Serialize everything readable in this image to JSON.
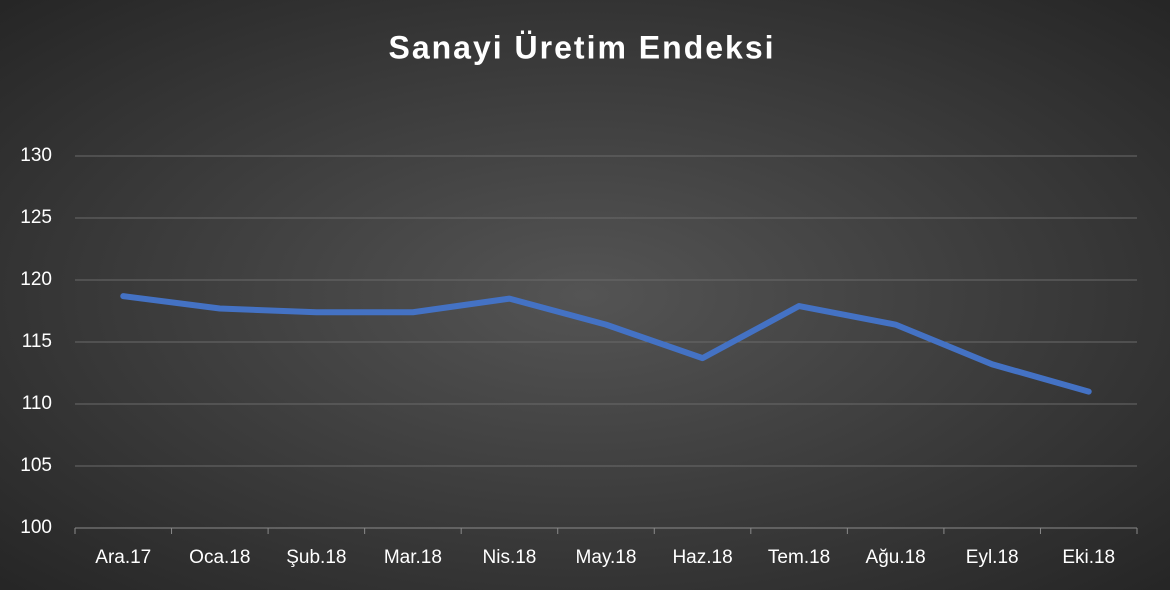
{
  "chart_data": {
    "type": "line",
    "title": "Sanayi Üretim Endeksi",
    "categories": [
      "Ara.17",
      "Oca.18",
      "Şub.18",
      "Mar.18",
      "Nis.18",
      "May.18",
      "Haz.18",
      "Tem.18",
      "Ağu.18",
      "Eyl.18",
      "Eki.18"
    ],
    "series": [
      {
        "name": "Sanayi Üretim Endeksi",
        "color": "#4472c4",
        "values": [
          118.7,
          117.7,
          117.4,
          117.4,
          118.5,
          116.4,
          113.7,
          117.9,
          116.4,
          113.2,
          111.0
        ]
      }
    ],
    "ylim": [
      100,
      130
    ],
    "yticks": [
      100,
      105,
      110,
      115,
      120,
      125,
      130
    ],
    "grid": true
  }
}
